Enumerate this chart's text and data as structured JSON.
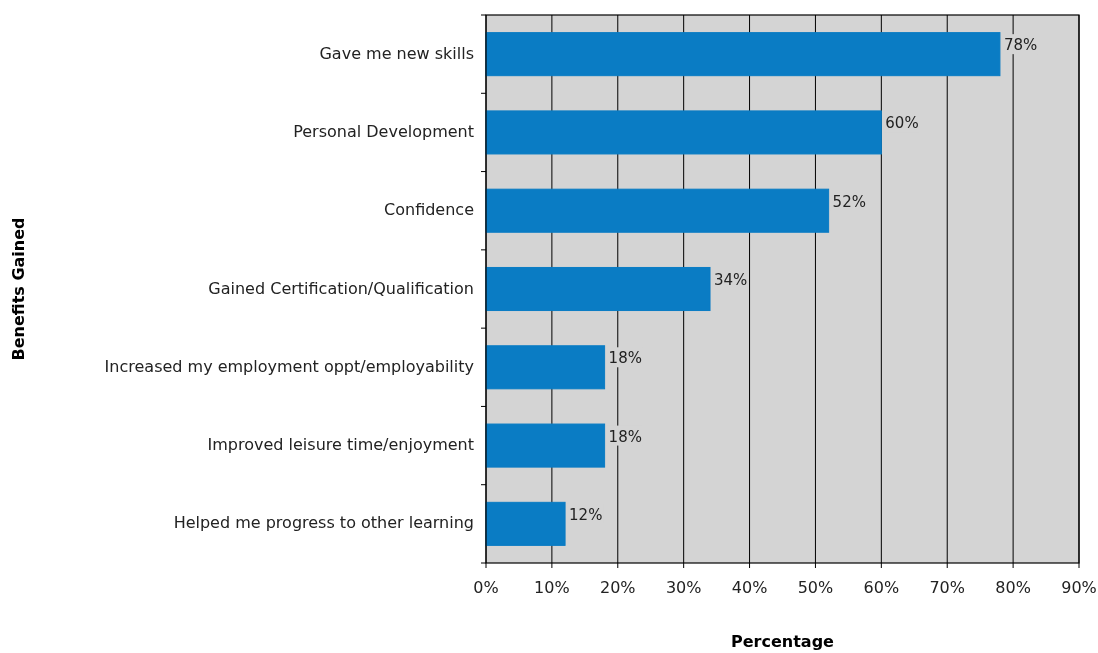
{
  "chart_data": {
    "type": "bar",
    "orientation": "horizontal",
    "xlabel": "Percentage",
    "ylabel": "Benefits Gained",
    "categories": [
      "Gave me new skills",
      "Personal Development",
      "Confidence",
      "Gained Certification/Qualification",
      "Increased my employment oppt/employability",
      "Improved leisure time/enjoyment",
      "Helped me progress to other learning"
    ],
    "values": [
      78,
      60,
      52,
      34,
      18,
      18,
      12
    ],
    "value_labels": [
      "78%",
      "60%",
      "52%",
      "34%",
      "18%",
      "18%",
      "12%"
    ],
    "color": "#0a7cc4",
    "xlim": [
      0,
      90
    ],
    "xticks": [
      {
        "value": 0,
        "label": "0%"
      },
      {
        "value": 10,
        "label": "10%"
      },
      {
        "value": 20,
        "label": "20%"
      },
      {
        "value": 30,
        "label": "30%"
      },
      {
        "value": 40,
        "label": "40%"
      },
      {
        "value": 50,
        "label": "50%"
      },
      {
        "value": 60,
        "label": "60%"
      },
      {
        "value": 70,
        "label": "70%"
      },
      {
        "value": 80,
        "label": "80%"
      },
      {
        "value": 90,
        "label": "90%"
      }
    ],
    "grid": "x"
  }
}
